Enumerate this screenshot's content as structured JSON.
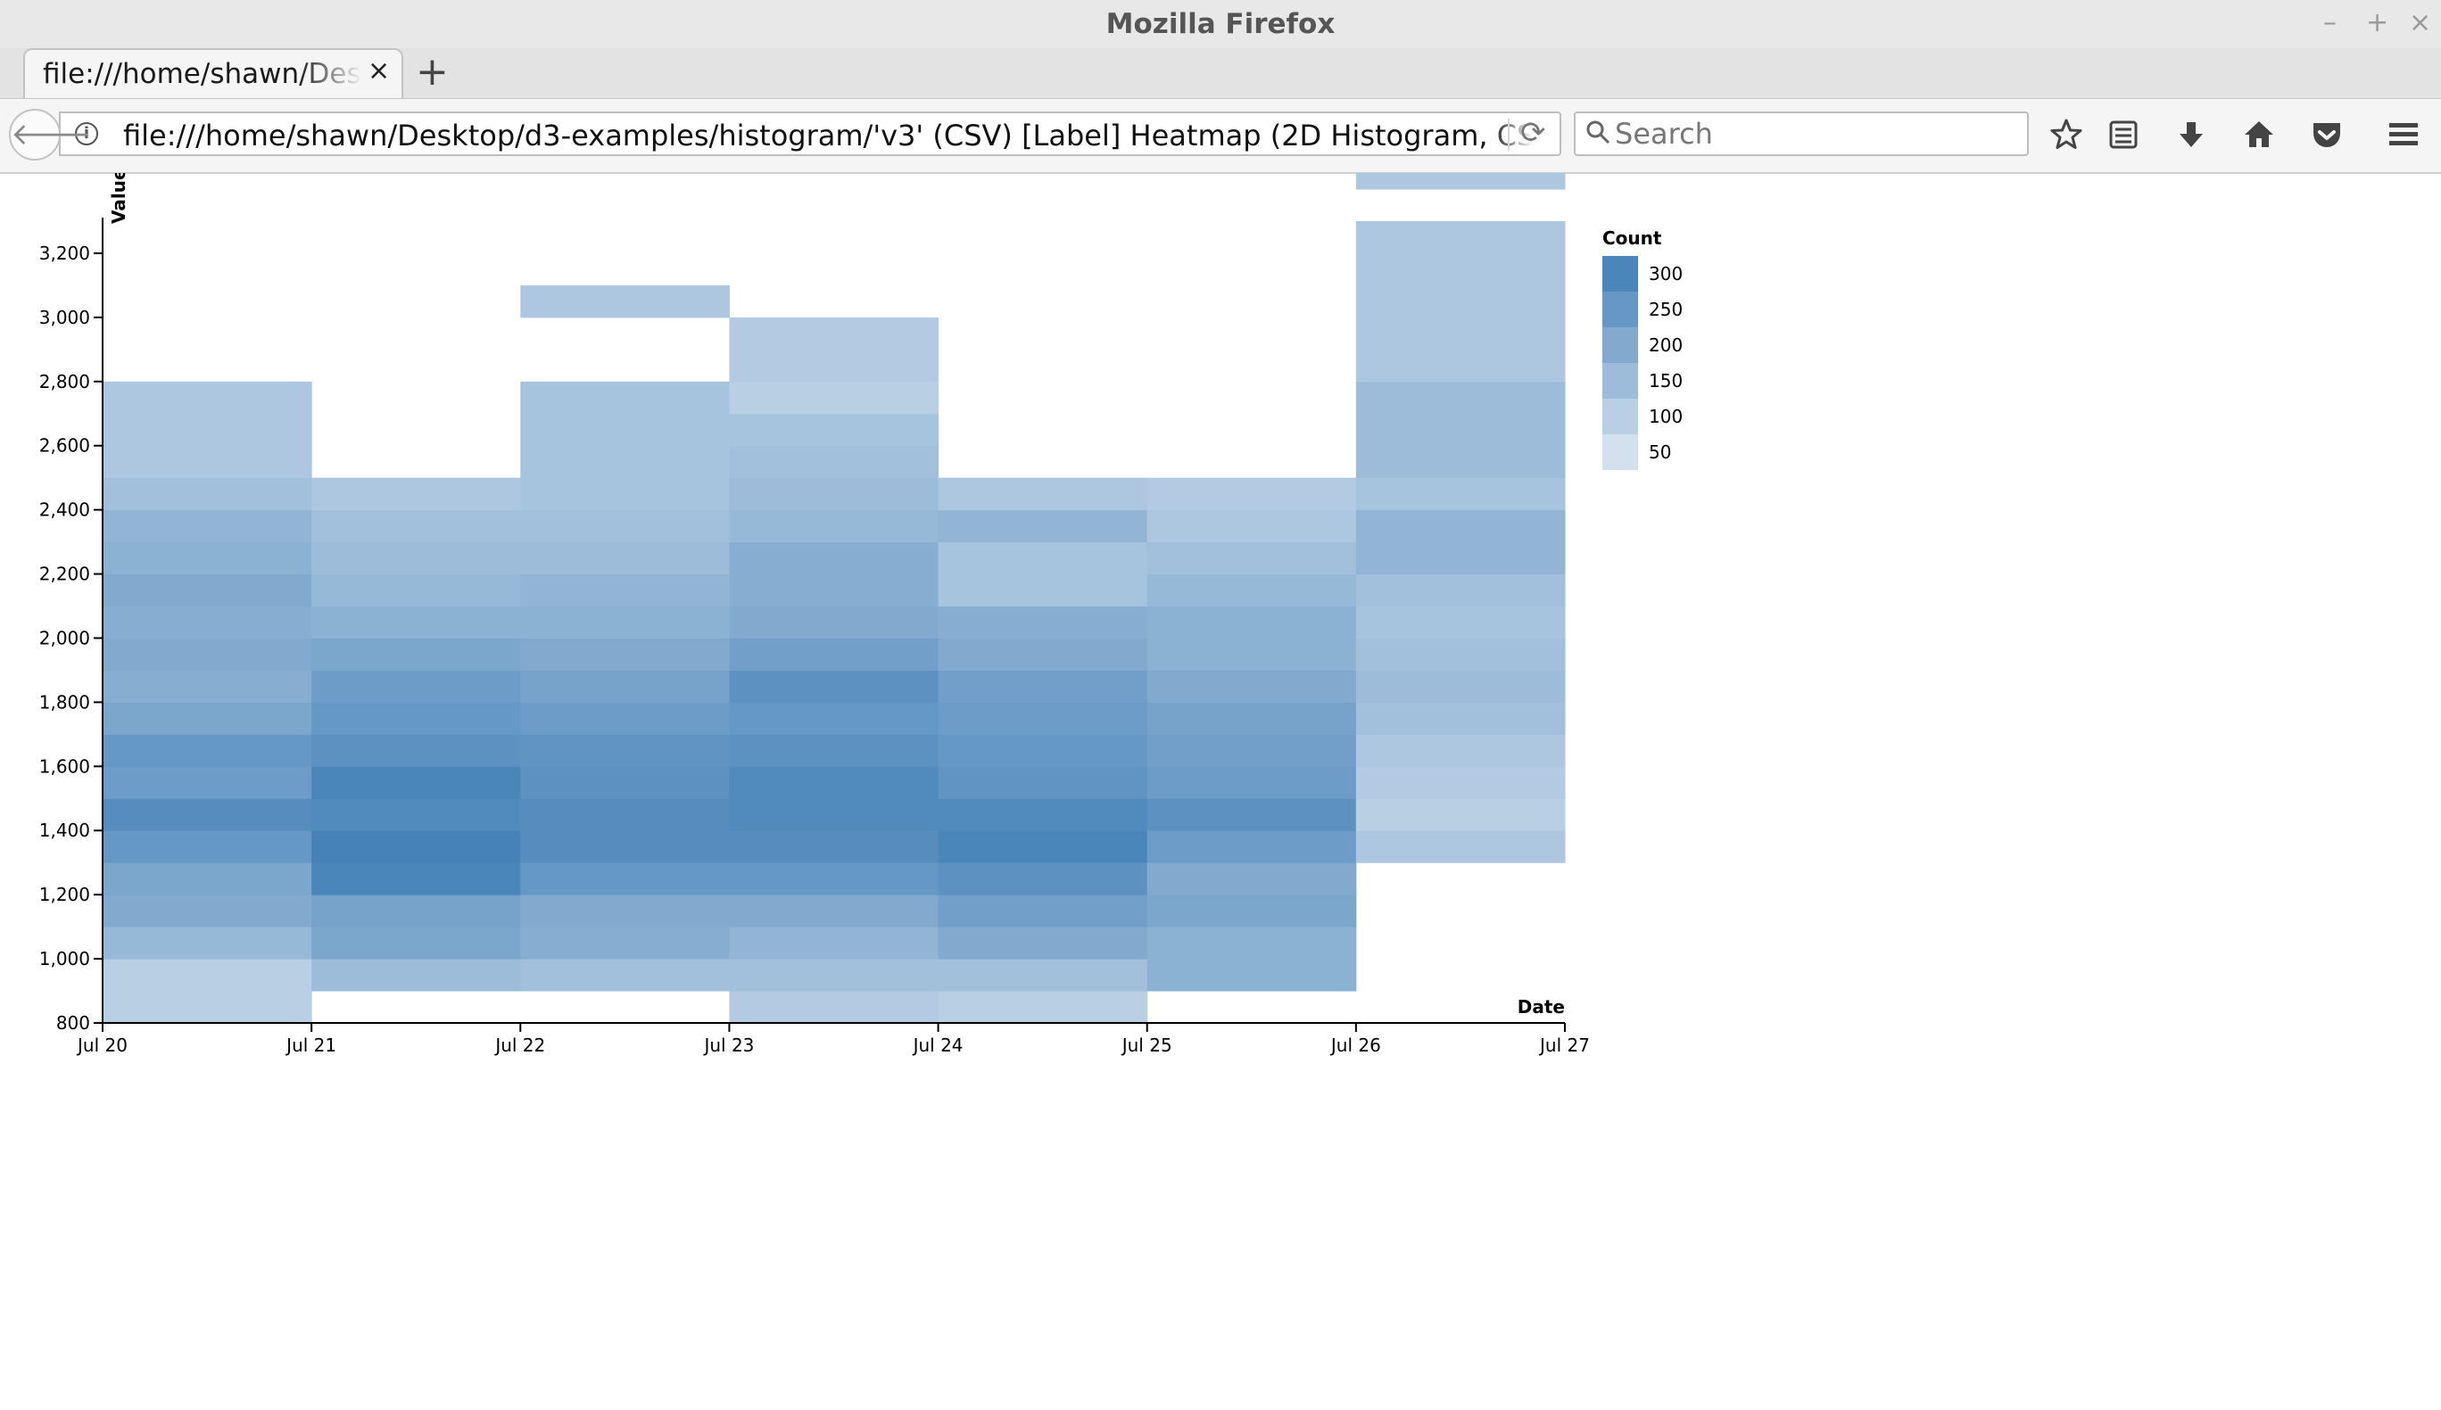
{
  "window": {
    "title": "Mozilla Firefox",
    "minimize": "–",
    "maximize": "+",
    "close": "×"
  },
  "tab": {
    "label": "file:///home/shawn/Desktop/d3-examples/histogram/'v3' (CSV) [Label] Heatmap (2D Histogram, CSV)/",
    "close": "×",
    "new_tab": "+"
  },
  "navbar": {
    "url": "file:///home/shawn/Desktop/d3-examples/histogram/'v3' (CSV) [Label] Heatmap (2D Histogram, CSV)/",
    "search_placeholder": "Search",
    "info": "i",
    "reload": "⟳",
    "back": "🡐",
    "icons": [
      "star-icon",
      "reading-list-icon",
      "download-icon",
      "home-icon",
      "pocket-icon",
      "menu-icon"
    ]
  },
  "chart_data": {
    "type": "heatmap",
    "xlabel": "Date",
    "ylabel": "Value",
    "x_ticks": [
      "Jul 20",
      "Jul 21",
      "Jul 22",
      "Jul 23",
      "Jul 24",
      "Jul 25",
      "Jul 26",
      "Jul 27"
    ],
    "y_ticks": [
      "800",
      "1,000",
      "1,200",
      "1,400",
      "1,600",
      "1,800",
      "2,000",
      "2,200",
      "2,400",
      "2,600",
      "2,800",
      "3,000",
      "3,200"
    ],
    "ylim": [
      800,
      3300
    ],
    "bin_size": 100,
    "color_scale": {
      "low": "#eef3f9",
      "high": "#3b7bb4",
      "domain": [
        0,
        330
      ]
    },
    "legend": {
      "title": "Count",
      "entries": [
        {
          "label": "300",
          "value": 300
        },
        {
          "label": "250",
          "value": 250
        },
        {
          "label": "200",
          "value": 200
        },
        {
          "label": "150",
          "value": 150
        },
        {
          "label": "100",
          "value": 100
        },
        {
          "label": "50",
          "value": 50
        }
      ]
    },
    "columns": [
      {
        "date": "Jul 20",
        "y_start": 800,
        "counts": [
          100,
          100,
          160,
          200,
          210,
          250,
          280,
          240,
          250,
          210,
          190,
          200,
          190,
          200,
          180,
          170,
          140,
          120,
          120,
          120,
          0,
          0,
          0,
          0,
          0
        ]
      },
      {
        "date": "Jul 21",
        "y_start": 900,
        "counts": [
          150,
          210,
          220,
          300,
          310,
          290,
          300,
          270,
          250,
          240,
          210,
          180,
          160,
          150,
          140,
          120,
          0,
          0,
          0,
          0,
          0,
          0,
          0,
          0,
          0
        ]
      },
      {
        "date": "Jul 22",
        "y_start": 900,
        "counts": [
          140,
          190,
          200,
          250,
          280,
          280,
          270,
          260,
          240,
          220,
          200,
          180,
          170,
          150,
          140,
          130,
          130,
          130,
          130,
          0,
          0,
          120
        ]
      },
      {
        "date": "Jul 23",
        "y_start": 800,
        "counts": [
          110,
          140,
          170,
          200,
          250,
          280,
          290,
          290,
          270,
          250,
          270,
          230,
          200,
          190,
          190,
          160,
          150,
          140,
          130,
          100,
          110,
          110
        ]
      },
      {
        "date": "Jul 24",
        "y_start": 800,
        "counts": [
          100,
          140,
          200,
          230,
          270,
          300,
          290,
          260,
          250,
          240,
          230,
          200,
          190,
          130,
          130,
          170,
          120
        ]
      },
      {
        "date": "Jul 25",
        "y_start": 900,
        "counts": [
          180,
          180,
          210,
          200,
          240,
          270,
          240,
          230,
          220,
          200,
          180,
          180,
          160,
          140,
          120,
          110
        ]
      },
      {
        "date": "Jul 26",
        "y_start": 1300,
        "counts": [
          120,
          100,
          110,
          120,
          140,
          150,
          140,
          130,
          140,
          170,
          170,
          130,
          150,
          150,
          150,
          120,
          120,
          120,
          120,
          120,
          0,
          120
        ]
      }
    ]
  }
}
